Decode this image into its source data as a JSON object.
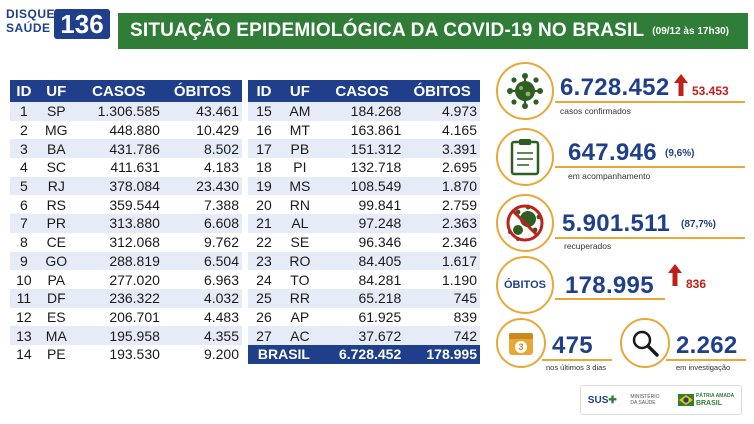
{
  "header": {
    "logo_line1": "DISQUE",
    "logo_line2": "SAÚDE",
    "logo_number": "136",
    "title": "SITUAÇÃO EPIDEMIOLÓGICA DA COVID-19 NO BRASIL",
    "date": "(09/12 às 17h30)"
  },
  "table": {
    "headers": [
      "ID",
      "UF",
      "CASOS",
      "ÓBITOS"
    ],
    "left_rows": [
      [
        "1",
        "SP",
        "1.306.585",
        "43.461"
      ],
      [
        "2",
        "MG",
        "448.880",
        "10.429"
      ],
      [
        "3",
        "BA",
        "431.786",
        "8.502"
      ],
      [
        "4",
        "SC",
        "411.631",
        "4.183"
      ],
      [
        "5",
        "RJ",
        "378.084",
        "23.430"
      ],
      [
        "6",
        "RS",
        "359.544",
        "7.388"
      ],
      [
        "7",
        "PR",
        "313.880",
        "6.608"
      ],
      [
        "8",
        "CE",
        "312.068",
        "9.762"
      ],
      [
        "9",
        "GO",
        "288.819",
        "6.504"
      ],
      [
        "10",
        "PA",
        "277.020",
        "6.963"
      ],
      [
        "11",
        "DF",
        "236.322",
        "4.032"
      ],
      [
        "12",
        "ES",
        "206.701",
        "4.483"
      ],
      [
        "13",
        "MA",
        "195.958",
        "4.355"
      ],
      [
        "14",
        "PE",
        "193.530",
        "9.200"
      ]
    ],
    "right_rows": [
      [
        "15",
        "AM",
        "184.268",
        "4.973"
      ],
      [
        "16",
        "MT",
        "163.861",
        "4.165"
      ],
      [
        "17",
        "PB",
        "151.312",
        "3.391"
      ],
      [
        "18",
        "PI",
        "132.718",
        "2.695"
      ],
      [
        "19",
        "MS",
        "108.549",
        "1.870"
      ],
      [
        "20",
        "RN",
        "99.841",
        "2.759"
      ],
      [
        "21",
        "AL",
        "97.248",
        "2.363"
      ],
      [
        "22",
        "SE",
        "96.346",
        "2.346"
      ],
      [
        "23",
        "RO",
        "84.405",
        "1.617"
      ],
      [
        "24",
        "TO",
        "84.281",
        "1.190"
      ],
      [
        "25",
        "RR",
        "65.218",
        "745"
      ],
      [
        "26",
        "AP",
        "61.925",
        "839"
      ],
      [
        "27",
        "AC",
        "37.672",
        "742"
      ]
    ],
    "total": {
      "label": "BRASIL",
      "casos": "6.728.452",
      "obitos": "178.995"
    }
  },
  "stats": {
    "confirmed": {
      "value": "6.728.452",
      "new": "53.453",
      "label": "casos confirmados",
      "icon": "virus-icon"
    },
    "monitoring": {
      "value": "647.946",
      "pct": "(9,6%)",
      "label": "em acompanhamento",
      "icon": "clipboard-icon"
    },
    "recovered": {
      "value": "5.901.511",
      "pct": "(87,7%)",
      "label": "recuperados",
      "icon": "no-virus-icon"
    },
    "deaths": {
      "badge": "ÓBITOS",
      "value": "178.995",
      "new": "836"
    },
    "last3days": {
      "value": "475",
      "label": "nos últimos 3 dias",
      "calendar_day": "3",
      "icon": "calendar-icon"
    },
    "investigation": {
      "value": "2.262",
      "label": "em investigação",
      "icon": "magnifier-icon"
    }
  },
  "footer": {
    "sus": "SUS",
    "ministry": "MINISTÉRIO DA SAÚDE",
    "brand_line1": "PÁTRIA AMADA",
    "brand_line2": "BRASIL"
  },
  "colors": {
    "blue": "#1f3f8a",
    "green": "#2f7d36",
    "orange": "#e8a838",
    "red": "#c0201a"
  }
}
